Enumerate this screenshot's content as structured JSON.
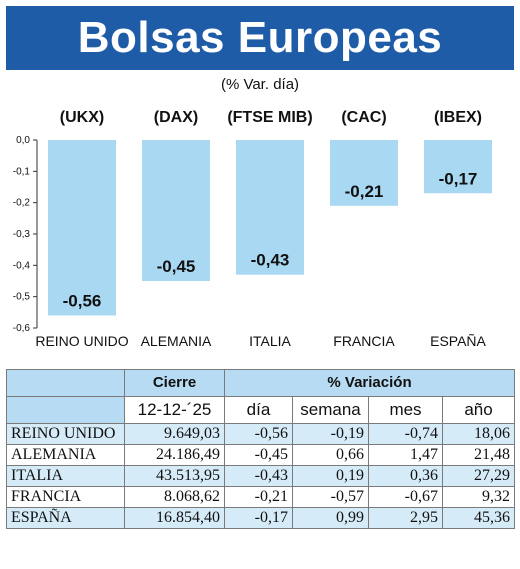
{
  "header": {
    "title": "Bolsas Europeas",
    "subtitle": "(% Var. día)"
  },
  "colors": {
    "banner": "#1f5ca8",
    "bar": "#a9d8f3",
    "table_header": "#b7dbf2",
    "table_alt": "#d6ebf8"
  },
  "chart_data": {
    "type": "bar",
    "title": "Bolsas Europeas",
    "subtitle": "(% Var. día)",
    "indices": [
      "(UKX)",
      "(DAX)",
      "(FTSE MIB)",
      "(CAC)",
      "(IBEX)"
    ],
    "categories": [
      "REINO UNIDO",
      "ALEMANIA",
      "ITALIA",
      "FRANCIA",
      "ESPAÑA"
    ],
    "values": [
      -0.56,
      -0.45,
      -0.43,
      -0.21,
      -0.17
    ],
    "value_labels": [
      "-0,56",
      "-0,45",
      "-0,43",
      "-0,21",
      "-0,17"
    ],
    "ylim": [
      -0.6,
      0.0
    ],
    "yticks": [
      0.0,
      -0.1,
      -0.2,
      -0.3,
      -0.4,
      -0.5,
      -0.6
    ],
    "ytick_labels": [
      "0,0",
      "-0,1",
      "-0,2",
      "-0,3",
      "-0,4",
      "-0,5",
      "-0,6"
    ],
    "grid": false,
    "legend": "none"
  },
  "table": {
    "header1": {
      "cierre": "Cierre",
      "variacion": "% Variación"
    },
    "header2": {
      "date": "12-12-´25",
      "dia": "día",
      "semana": "semana",
      "mes": "mes",
      "anio": "año"
    },
    "rows": [
      {
        "name": "REINO UNIDO",
        "cierre": "9.649,03",
        "dia": "-0,56",
        "semana": "-0,19",
        "mes": "-0,74",
        "anio": "18,06"
      },
      {
        "name": "ALEMANIA",
        "cierre": "24.186,49",
        "dia": "-0,45",
        "semana": "0,66",
        "mes": "1,47",
        "anio": "21,48"
      },
      {
        "name": "ITALIA",
        "cierre": "43.513,95",
        "dia": "-0,43",
        "semana": "0,19",
        "mes": "0,36",
        "anio": "27,29"
      },
      {
        "name": "FRANCIA",
        "cierre": "8.068,62",
        "dia": "-0,21",
        "semana": "-0,57",
        "mes": "-0,67",
        "anio": "9,32"
      },
      {
        "name": "ESPAÑA",
        "cierre": "16.854,40",
        "dia": "-0,17",
        "semana": "0,99",
        "mes": "2,95",
        "anio": "45,36"
      }
    ]
  }
}
